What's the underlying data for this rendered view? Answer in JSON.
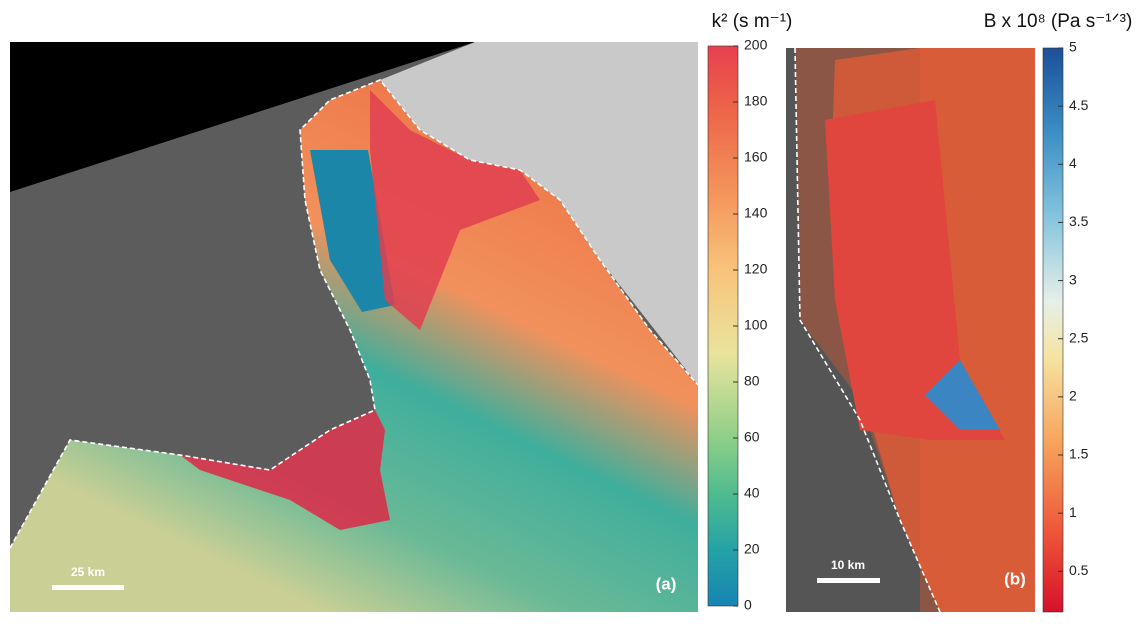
{
  "panels": [
    {
      "label": "(a)",
      "scale_bar": "25 km",
      "colorbar": {
        "title": "k² (s m⁻¹)",
        "lim": [
          0,
          200
        ],
        "ticks": [
          0,
          20,
          40,
          60,
          80,
          100,
          120,
          140,
          160,
          180,
          200
        ]
      }
    },
    {
      "label": "(b)",
      "scale_bar": "10 km",
      "colorbar": {
        "title": "B x 10⁸ (Pa s⁻¹ᐟ³)",
        "lim": [
          0.15,
          5
        ],
        "ticks": [
          0.5,
          1,
          1.5,
          2,
          2.5,
          3,
          3.5,
          4,
          4.5,
          5
        ]
      }
    }
  ]
}
